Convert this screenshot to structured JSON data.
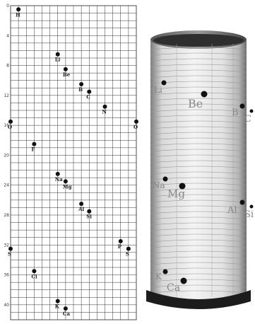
{
  "grid_figure": {
    "y_ticks": [
      "0",
      "4",
      "8",
      "12",
      "16",
      "20",
      "24",
      "28",
      "32",
      "36",
      "40"
    ],
    "elements": [
      {
        "symbol": "H",
        "col": 1,
        "row": 0.5
      },
      {
        "symbol": "Li",
        "col": 6,
        "row": 6.5
      },
      {
        "symbol": "Be",
        "col": 7,
        "row": 8.5
      },
      {
        "symbol": "B",
        "col": 9,
        "row": 10.5
      },
      {
        "symbol": "C",
        "col": 10,
        "row": 11.5
      },
      {
        "symbol": "N",
        "col": 12,
        "row": 13.5
      },
      {
        "symbol": "O",
        "col": 0,
        "row": 15.5
      },
      {
        "symbol": "O",
        "col": 16,
        "row": 15.5
      },
      {
        "symbol": "F",
        "col": 3,
        "row": 18.5
      },
      {
        "symbol": "Na",
        "col": 6,
        "row": 22.5
      },
      {
        "symbol": "Mg",
        "col": 7,
        "row": 23.5
      },
      {
        "symbol": "Al",
        "col": 9,
        "row": 26.5
      },
      {
        "symbol": "Si",
        "col": 10,
        "row": 27.5
      },
      {
        "symbol": "P",
        "col": 14,
        "row": 31.5
      },
      {
        "symbol": "S",
        "col": 0,
        "row": 32.5
      },
      {
        "symbol": "S",
        "col": 15,
        "row": 32.5
      },
      {
        "symbol": "Cl",
        "col": 3,
        "row": 35.5
      },
      {
        "symbol": "K",
        "col": 6,
        "row": 39.5
      },
      {
        "symbol": "Ca",
        "col": 7,
        "row": 40.5
      }
    ]
  },
  "cylinder_photo": {
    "labels": [
      "Li",
      "Be",
      "B",
      "C",
      "Na",
      "Mg",
      "Al",
      "Si",
      "K",
      "Ca"
    ]
  }
}
